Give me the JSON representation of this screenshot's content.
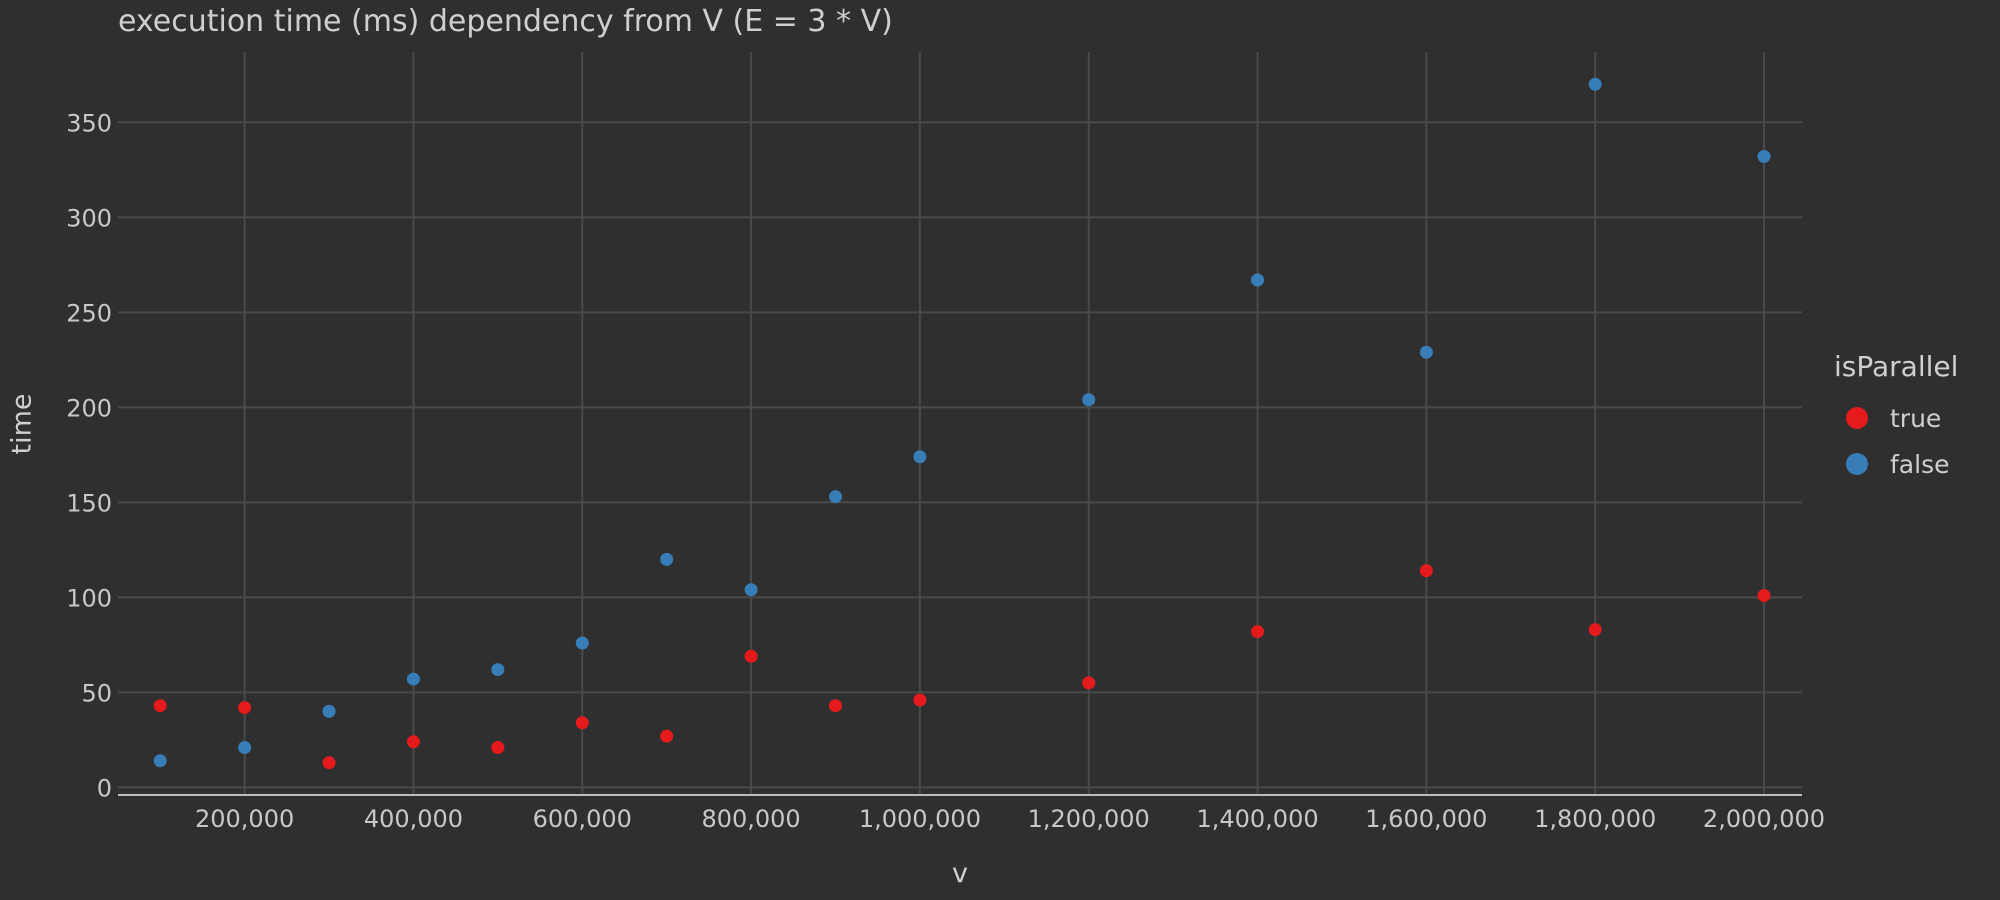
{
  "chart_data": {
    "type": "scatter",
    "title": "execution time (ms) dependency from V (E = 3 * V)",
    "xlabel": "v",
    "ylabel": "time",
    "xlim": [
      50000,
      2045000
    ],
    "ylim": [
      -4,
      387
    ],
    "x_ticks": [
      200000,
      400000,
      600000,
      800000,
      1000000,
      1200000,
      1400000,
      1600000,
      1800000,
      2000000
    ],
    "x_tick_labels": [
      "200,000",
      "400,000",
      "600,000",
      "800,000",
      "1,000,000",
      "1,200,000",
      "1,400,000",
      "1,600,000",
      "1,800,000",
      "2,000,000"
    ],
    "y_ticks": [
      0,
      50,
      100,
      150,
      200,
      250,
      300,
      350
    ],
    "y_tick_labels": [
      "0",
      "50",
      "100",
      "150",
      "200",
      "250",
      "300",
      "350"
    ],
    "grid": true,
    "legend": {
      "title": "isParallel",
      "placement": "right"
    },
    "series": [
      {
        "name": "true",
        "color": "#e41a1c",
        "x": [
          100000,
          200000,
          300000,
          400000,
          500000,
          600000,
          700000,
          800000,
          900000,
          1000000,
          1200000,
          1400000,
          1600000,
          1800000,
          2000000
        ],
        "y": [
          43,
          42,
          13,
          24,
          21,
          34,
          27,
          69,
          43,
          46,
          55,
          82,
          114,
          83,
          101
        ]
      },
      {
        "name": "false",
        "color": "#377eb8",
        "x": [
          100000,
          200000,
          300000,
          400000,
          500000,
          600000,
          700000,
          800000,
          900000,
          1000000,
          1200000,
          1400000,
          1600000,
          1800000,
          2000000
        ],
        "y": [
          14,
          21,
          40,
          57,
          62,
          76,
          120,
          104,
          153,
          174,
          204,
          267,
          229,
          370,
          332
        ]
      }
    ]
  }
}
